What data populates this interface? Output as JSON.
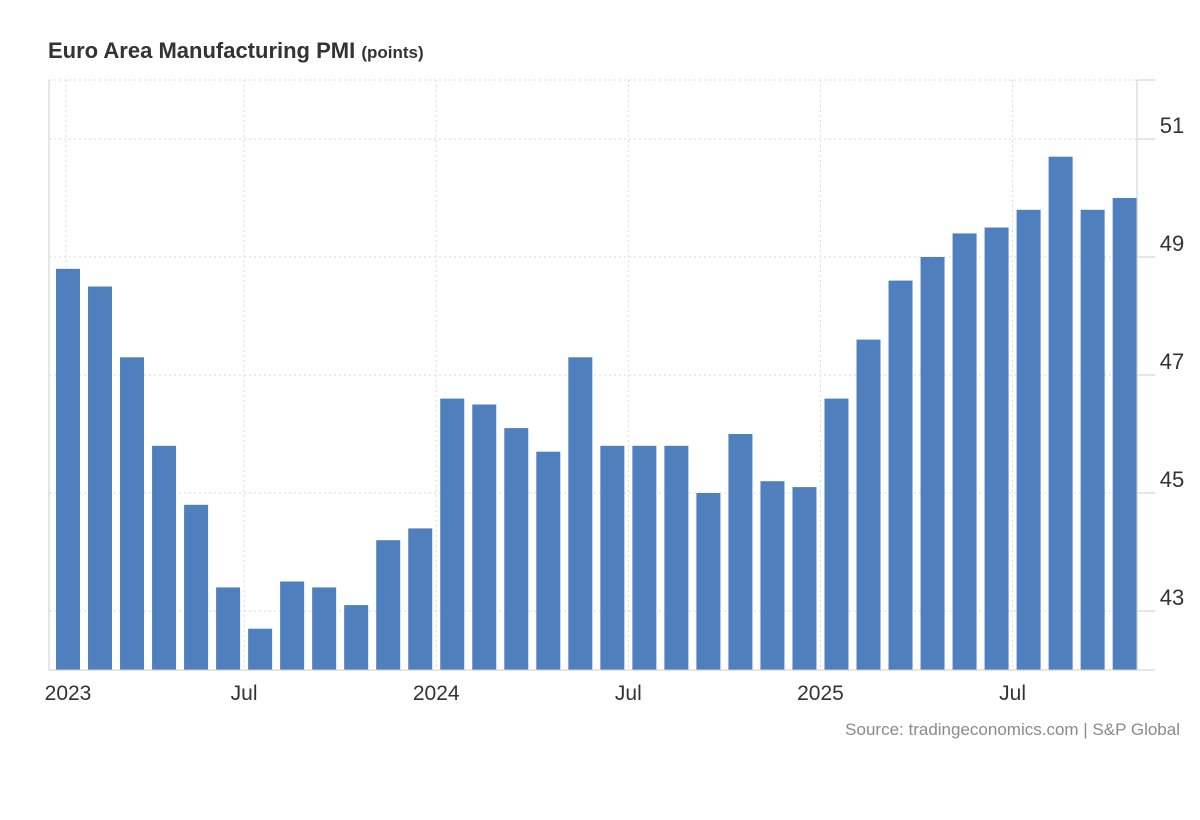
{
  "chart_data": {
    "type": "bar",
    "title": "Euro Area Manufacturing PMI",
    "unit": "(points)",
    "source": "Source: tradingeconomics.com | S&P Global",
    "color": "#4f80bd",
    "categories": [
      "Jan 2023",
      "Feb 2023",
      "Mar 2023",
      "Apr 2023",
      "May 2023",
      "Jun 2023",
      "Jul 2023",
      "Aug 2023",
      "Sep 2023",
      "Oct 2023",
      "Nov 2023",
      "Dec 2023",
      "Jan 2024",
      "Feb 2024",
      "Mar 2024",
      "Apr 2024",
      "May 2024",
      "Jun 2024",
      "Jul 2024",
      "Aug 2024",
      "Sep 2024",
      "Oct 2024",
      "Nov 2024",
      "Dec 2024",
      "Jan 2025",
      "Feb 2025",
      "Mar 2025",
      "Apr 2025",
      "May 2025",
      "Jun 2025",
      "Jul 2025",
      "Aug 2025",
      "Sep 2025",
      "Oct 2025"
    ],
    "values": [
      48.8,
      48.5,
      47.3,
      45.8,
      44.8,
      43.4,
      42.7,
      43.5,
      43.4,
      43.1,
      44.2,
      44.4,
      46.6,
      46.5,
      46.1,
      45.7,
      47.3,
      45.8,
      45.8,
      45.8,
      45.0,
      46.0,
      45.2,
      45.1,
      46.6,
      47.6,
      48.6,
      49.0,
      49.4,
      49.5,
      49.8,
      50.7,
      49.8,
      50.0
    ],
    "xticks": [
      {
        "label": "2023",
        "index": 0
      },
      {
        "label": "Jul",
        "index": 6
      },
      {
        "label": "2024",
        "index": 12
      },
      {
        "label": "Jul",
        "index": 18
      },
      {
        "label": "2025",
        "index": 24
      },
      {
        "label": "Jul",
        "index": 30
      }
    ],
    "yticks": [
      43,
      45,
      47,
      49,
      51
    ],
    "ylim": [
      42,
      52
    ],
    "y_axis_side": "right",
    "grid": true
  }
}
